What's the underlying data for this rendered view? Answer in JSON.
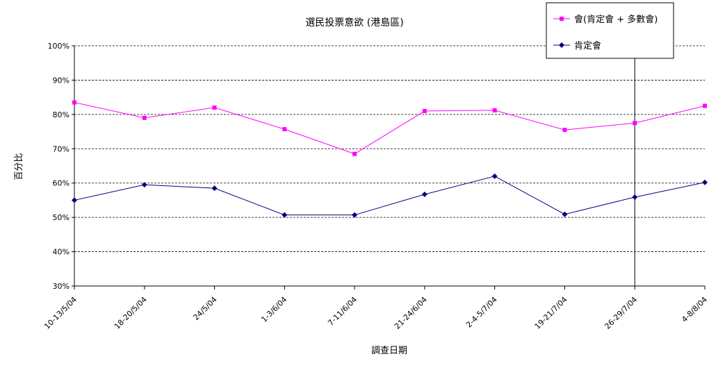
{
  "chart_data": {
    "type": "line",
    "title": "選民投票意欲 (港島區)",
    "xlabel": "調查日期",
    "ylabel": "百分比",
    "categories": [
      "10-13/5/04",
      "18-20/5/04",
      "24/5/04",
      "1-3/6/04",
      "7-11/6/04",
      "21-24/6/04",
      "2-4-5/7/04",
      "19-21/7/04",
      "26-29/7/04",
      "4-8/8/04"
    ],
    "ylim": [
      30,
      100
    ],
    "yticks": [
      30,
      40,
      50,
      60,
      70,
      80,
      90,
      100
    ],
    "ytick_labels": [
      "30%",
      "40%",
      "50%",
      "60%",
      "70%",
      "80%",
      "90%",
      "100%"
    ],
    "grid": "horizontal dashed",
    "legend_position": "top-right",
    "series": [
      {
        "name": "會(肯定會 + 多數會)",
        "color": "#ff00ff",
        "marker": "square",
        "values": [
          83.5,
          79,
          82,
          75.7,
          68.5,
          81,
          81.2,
          75.5,
          77.5,
          82.5
        ]
      },
      {
        "name": "肯定會",
        "color": "#000080",
        "marker": "diamond",
        "values": [
          55,
          59.5,
          58.5,
          50.7,
          50.7,
          56.7,
          62,
          50.9,
          55.9,
          60.2
        ]
      }
    ],
    "reference_line_at_category": "26-29/7/04"
  }
}
